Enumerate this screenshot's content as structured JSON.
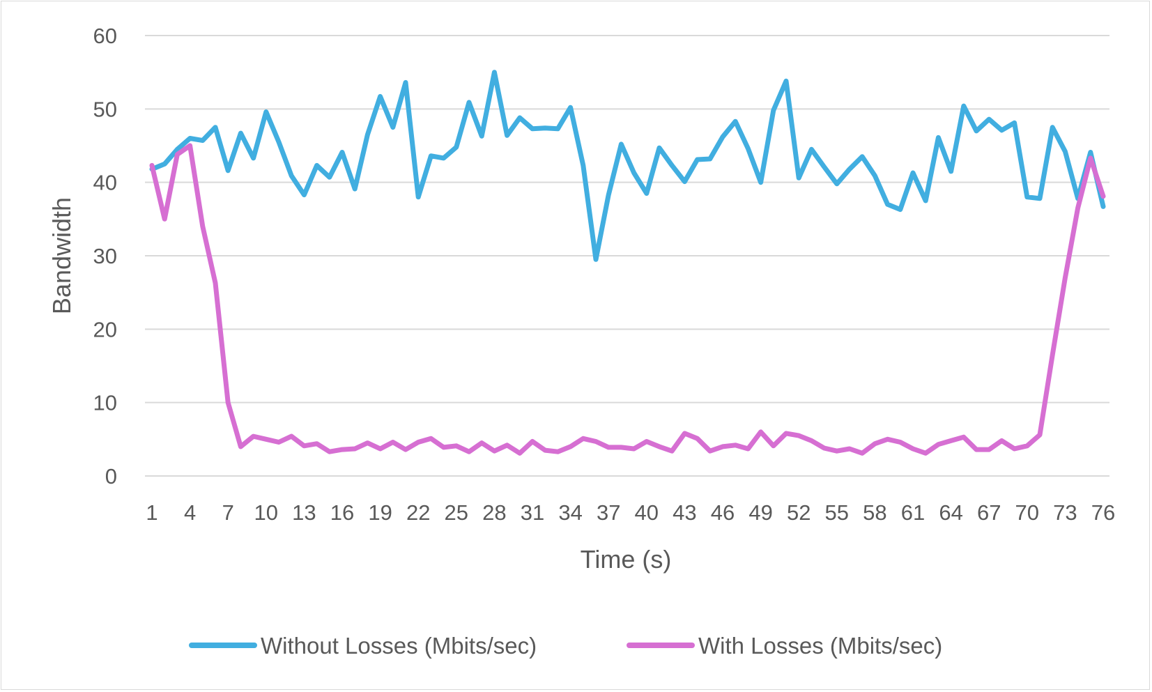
{
  "chart_data": {
    "type": "line",
    "title": "",
    "xlabel": "Time (s)",
    "ylabel": "Bandwidth",
    "ylim": [
      0,
      60
    ],
    "yticks": [
      0,
      10,
      20,
      30,
      40,
      50,
      60
    ],
    "x": [
      1,
      2,
      3,
      4,
      5,
      6,
      7,
      8,
      9,
      10,
      11,
      12,
      13,
      14,
      15,
      16,
      17,
      18,
      19,
      20,
      21,
      22,
      23,
      24,
      25,
      26,
      27,
      28,
      29,
      30,
      31,
      32,
      33,
      34,
      35,
      36,
      37,
      38,
      39,
      40,
      41,
      42,
      43,
      44,
      45,
      46,
      47,
      48,
      49,
      50,
      51,
      52,
      53,
      54,
      55,
      56,
      57,
      58,
      59,
      60,
      61,
      62,
      63,
      64,
      65,
      66,
      67,
      68,
      69,
      70,
      71,
      72,
      73,
      74,
      75,
      76
    ],
    "xtick_labels": [
      "1",
      "4",
      "7",
      "10",
      "13",
      "16",
      "19",
      "22",
      "25",
      "28",
      "31",
      "34",
      "37",
      "40",
      "43",
      "46",
      "49",
      "52",
      "55",
      "58",
      "61",
      "64",
      "67",
      "70",
      "73",
      "76"
    ],
    "grid": true,
    "legend_position": "bottom",
    "series": [
      {
        "name": "Without Losses (Mbits/sec)",
        "color": "#41aee0",
        "values": [
          41.8,
          42.5,
          44.5,
          46,
          45.7,
          47.5,
          41.6,
          46.7,
          43.3,
          49.6,
          45.5,
          40.9,
          38.3,
          42.3,
          40.7,
          44.1,
          39.1,
          46.5,
          51.7,
          47.5,
          53.6,
          38,
          43.6,
          43.3,
          44.8,
          50.9,
          46.3,
          55,
          46.4,
          48.8,
          47.3,
          47.4,
          47.3,
          50.2,
          42.3,
          29.5,
          38.3,
          45.2,
          41.3,
          38.5,
          44.7,
          42.3,
          40.1,
          43.1,
          43.2,
          46.2,
          48.3,
          44.6,
          40,
          49.8,
          53.8,
          40.6,
          44.5,
          42.1,
          39.8,
          41.8,
          43.5,
          40.9,
          37,
          36.3,
          41.3,
          37.5,
          46.1,
          41.5,
          50.4,
          47,
          48.6,
          47.1,
          48.1,
          38,
          37.8,
          47.5,
          44.2,
          37.8,
          44.1,
          36.7
        ]
      },
      {
        "name": "With Losses (Mbits/sec)",
        "color": "#d66fd2",
        "values": [
          42.3,
          35,
          43.8,
          45,
          34,
          26.3,
          10,
          4,
          5.4,
          5,
          4.6,
          5.4,
          4.1,
          4.4,
          3.3,
          3.6,
          3.7,
          4.5,
          3.7,
          4.6,
          3.6,
          4.6,
          5.1,
          3.9,
          4.1,
          3.3,
          4.5,
          3.4,
          4.2,
          3.1,
          4.7,
          3.5,
          3.3,
          4,
          5.1,
          4.7,
          3.9,
          3.9,
          3.7,
          4.7,
          4,
          3.4,
          5.8,
          5.1,
          3.4,
          4,
          4.2,
          3.7,
          6,
          4.1,
          5.8,
          5.5,
          4.8,
          3.8,
          3.4,
          3.7,
          3.1,
          4.4,
          5,
          4.6,
          3.7,
          3.1,
          4.3,
          4.8,
          5.3,
          3.6,
          3.6,
          4.8,
          3.7,
          4.1,
          5.6,
          16.5,
          27,
          36.5,
          43.3,
          38.1
        ]
      }
    ]
  }
}
